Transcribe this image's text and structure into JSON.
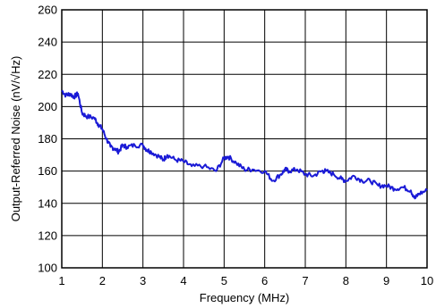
{
  "chart_data": {
    "type": "line",
    "xlabel": "Frequency (MHz)",
    "ylabel": "Output-Referred Noise (nV/√Hz)",
    "xlim": [
      1,
      10
    ],
    "ylim": [
      100,
      260
    ],
    "x_ticks": [
      "1",
      "2",
      "3",
      "4",
      "5",
      "6",
      "7",
      "8",
      "9",
      "10"
    ],
    "y_ticks": [
      "100",
      "120",
      "140",
      "160",
      "180",
      "200",
      "220",
      "240",
      "260"
    ],
    "grid": true,
    "line_color": "#1a1ad6",
    "series": [
      {
        "x": [
          1.0,
          1.1,
          1.2,
          1.3,
          1.4,
          1.5,
          1.6,
          1.8,
          1.9,
          2.0,
          2.1,
          2.2,
          2.3,
          2.4,
          2.5,
          2.6,
          2.8,
          3.0,
          3.1,
          3.2,
          3.4,
          3.5,
          3.6,
          3.8,
          4.0,
          4.2,
          4.5,
          4.8,
          5.0,
          5.1,
          5.3,
          5.5,
          5.7,
          6.0,
          6.2,
          6.4,
          6.5,
          6.6,
          6.8,
          7.0,
          7.2,
          7.4,
          7.5,
          7.7,
          7.9,
          8.0,
          8.2,
          8.4,
          8.6,
          8.8,
          9.0,
          9.2,
          9.4,
          9.6,
          9.7,
          9.8,
          10.0
        ],
        "values": [
          210,
          207,
          208,
          206,
          208,
          196,
          194,
          193,
          189,
          186,
          180,
          175,
          174,
          172,
          176,
          175,
          176,
          176,
          173,
          172,
          169,
          167,
          170,
          167,
          166,
          163,
          163,
          160,
          168,
          169,
          165,
          161,
          161,
          160,
          154,
          158,
          161,
          160,
          161,
          158,
          157,
          160,
          160,
          158,
          155,
          154,
          157,
          154,
          154,
          151,
          151,
          149,
          150,
          148,
          143,
          146,
          148
        ]
      }
    ]
  }
}
